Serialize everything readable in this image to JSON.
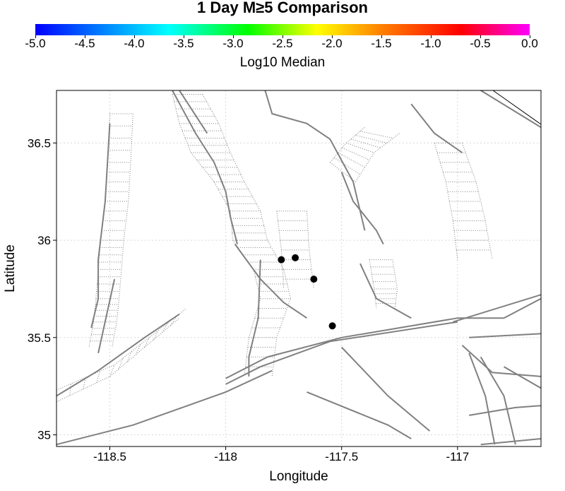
{
  "title": "1 Day M≥5 Comparison",
  "colorbar": {
    "label": "Log10 Median",
    "ticks": [
      "-5.0",
      "-4.5",
      "-4.0",
      "-3.5",
      "-3.0",
      "-2.5",
      "-2.0",
      "-1.5",
      "-1.0",
      "-0.5",
      "0.0"
    ],
    "range": [
      -5.0,
      0.0
    ],
    "colors": [
      "#0000ff",
      "#00ffff",
      "#00ff00",
      "#ffff00",
      "#ff8000",
      "#ff0000",
      "#ff00ff"
    ]
  },
  "map": {
    "xlabel": "Longitude",
    "ylabel": "Latitude",
    "xlim": [
      -118.73,
      -116.64
    ],
    "ylim": [
      34.94,
      36.77
    ],
    "xticks": [
      {
        "value": -118.5,
        "label": "-118.5"
      },
      {
        "value": -118.0,
        "label": "-118"
      },
      {
        "value": -117.5,
        "label": "-117.5"
      },
      {
        "value": -117.0,
        "label": "-117"
      }
    ],
    "yticks": [
      {
        "value": 35.0,
        "label": "35"
      },
      {
        "value": 35.5,
        "label": "35.5"
      },
      {
        "value": 36.0,
        "label": "36"
      },
      {
        "value": 36.5,
        "label": "36.5"
      }
    ],
    "grid": true,
    "colors": {
      "fault": "#808080",
      "rupture": "#808080",
      "event": "#000000",
      "grid": "#d8d8d8"
    }
  },
  "chart_data": {
    "type": "scatter",
    "title": "1 Day M≥5 Comparison",
    "xlabel": "Longitude",
    "ylabel": "Latitude",
    "xlim": [
      -118.73,
      -116.64
    ],
    "ylim": [
      34.94,
      36.77
    ],
    "series": [
      {
        "values": [
          {
            "x": -117.76,
            "y": 35.9
          },
          {
            "x": -117.7,
            "y": 35.91
          },
          {
            "x": -117.62,
            "y": 35.8
          },
          {
            "x": -117.54,
            "y": 35.56
          }
        ]
      }
    ],
    "faults": [
      [
        [
          -118.73,
          35.2
        ],
        [
          -118.55,
          35.33
        ],
        [
          -118.35,
          35.5
        ],
        [
          -118.2,
          35.62
        ]
      ],
      [
        [
          -118.48,
          35.8
        ],
        [
          -118.55,
          35.42
        ]
      ],
      [
        [
          -118.0,
          35.29
        ],
        [
          -117.82,
          35.4
        ],
        [
          -117.5,
          35.5
        ],
        [
          -117.0,
          35.6
        ],
        [
          -116.8,
          35.6
        ]
      ],
      [
        [
          -116.8,
          35.6
        ],
        [
          -116.64,
          35.7
        ]
      ],
      [
        [
          -118.73,
          34.95
        ],
        [
          -118.4,
          35.05
        ],
        [
          -118.0,
          35.22
        ],
        [
          -117.8,
          35.33
        ]
      ],
      [
        [
          -118.0,
          35.26
        ],
        [
          -117.85,
          35.35
        ],
        [
          -117.55,
          35.48
        ],
        [
          -117.0,
          35.58
        ]
      ],
      [
        [
          -117.02,
          35.58
        ],
        [
          -116.64,
          35.72
        ]
      ],
      [
        [
          -118.23,
          36.77
        ],
        [
          -118.13,
          36.55
        ],
        [
          -118.05,
          36.4
        ],
        [
          -118.0,
          36.25
        ],
        [
          -117.98,
          36.12
        ],
        [
          -117.95,
          35.98
        ]
      ],
      [
        [
          -118.2,
          36.77
        ],
        [
          -118.08,
          36.55
        ]
      ],
      [
        [
          -117.96,
          35.98
        ],
        [
          -117.85,
          35.8
        ],
        [
          -117.75,
          35.68
        ],
        [
          -117.65,
          35.6
        ]
      ],
      [
        [
          -117.83,
          36.77
        ],
        [
          -117.8,
          36.65
        ],
        [
          -117.65,
          36.6
        ],
        [
          -117.55,
          36.52
        ],
        [
          -117.45,
          36.3
        ],
        [
          -117.4,
          36.05
        ]
      ],
      [
        [
          -117.5,
          36.35
        ],
        [
          -117.45,
          36.2
        ],
        [
          -117.35,
          36.05
        ],
        [
          -117.32,
          35.98
        ]
      ],
      [
        [
          -117.42,
          35.88
        ],
        [
          -117.35,
          35.7
        ],
        [
          -117.2,
          35.6
        ]
      ],
      [
        [
          -117.2,
          36.7
        ],
        [
          -117.1,
          36.55
        ],
        [
          -116.98,
          36.45
        ]
      ],
      [
        [
          -116.9,
          36.77
        ],
        [
          -116.64,
          36.58
        ]
      ],
      [
        [
          -117.5,
          35.45
        ],
        [
          -117.3,
          35.2
        ],
        [
          -117.12,
          35.02
        ]
      ],
      [
        [
          -117.65,
          35.22
        ],
        [
          -117.3,
          35.05
        ],
        [
          -117.2,
          34.98
        ]
      ],
      [
        [
          -116.95,
          35.42
        ],
        [
          -116.88,
          35.2
        ],
        [
          -116.84,
          34.95
        ]
      ],
      [
        [
          -116.98,
          35.46
        ],
        [
          -116.85,
          35.32
        ],
        [
          -116.64,
          35.3
        ]
      ],
      [
        [
          -116.9,
          35.4
        ],
        [
          -116.8,
          35.2
        ],
        [
          -116.75,
          34.95
        ]
      ],
      [
        [
          -116.95,
          35.1
        ],
        [
          -116.75,
          35.14
        ],
        [
          -116.64,
          35.15
        ]
      ],
      [
        [
          -116.95,
          35.5
        ],
        [
          -116.64,
          35.52
        ]
      ],
      [
        [
          -116.8,
          35.35
        ],
        [
          -116.64,
          35.24
        ]
      ],
      [
        [
          -116.9,
          34.95
        ],
        [
          -116.64,
          34.98
        ]
      ],
      [
        [
          -118.5,
          36.6
        ],
        [
          -118.52,
          36.2
        ],
        [
          -118.55,
          35.9
        ],
        [
          -118.55,
          35.7
        ],
        [
          -118.58,
          35.55
        ]
      ],
      [
        [
          -117.85,
          35.9
        ],
        [
          -117.86,
          35.6
        ],
        [
          -117.9,
          35.4
        ],
        [
          -117.9,
          35.3
        ]
      ]
    ],
    "ruptures": [
      {
        "left": [
          [
            -118.5,
            36.65
          ],
          [
            -118.51,
            36.4
          ],
          [
            -118.52,
            36.2
          ],
          [
            -118.54,
            36.0
          ],
          [
            -118.55,
            35.85
          ],
          [
            -118.56,
            35.7
          ],
          [
            -118.57,
            35.58
          ],
          [
            -118.59,
            35.45
          ]
        ],
        "right": [
          [
            -118.4,
            36.65
          ],
          [
            -118.41,
            36.4
          ],
          [
            -118.42,
            36.2
          ],
          [
            -118.44,
            36.0
          ],
          [
            -118.45,
            35.85
          ],
          [
            -118.46,
            35.7
          ],
          [
            -118.47,
            35.58
          ],
          [
            -118.49,
            35.45
          ]
        ]
      },
      {
        "left": [
          [
            -118.23,
            36.75
          ],
          [
            -118.2,
            36.6
          ],
          [
            -118.15,
            36.45
          ],
          [
            -118.05,
            36.3
          ],
          [
            -117.98,
            36.15
          ],
          [
            -117.97,
            36.0
          ],
          [
            -117.88,
            35.85
          ],
          [
            -117.85,
            35.7
          ],
          [
            -117.9,
            35.5
          ],
          [
            -117.92,
            35.3
          ]
        ],
        "right": [
          [
            -118.1,
            36.75
          ],
          [
            -118.03,
            36.6
          ],
          [
            -117.98,
            36.45
          ],
          [
            -117.92,
            36.3
          ],
          [
            -117.85,
            36.15
          ],
          [
            -117.82,
            36.0
          ],
          [
            -117.75,
            35.85
          ],
          [
            -117.72,
            35.7
          ],
          [
            -117.78,
            35.5
          ],
          [
            -117.8,
            35.3
          ]
        ]
      },
      {
        "left": [
          [
            -117.78,
            36.15
          ],
          [
            -117.76,
            35.95
          ],
          [
            -117.75,
            35.75
          ]
        ],
        "right": [
          [
            -117.65,
            36.15
          ],
          [
            -117.64,
            35.95
          ],
          [
            -117.62,
            35.75
          ]
        ]
      },
      {
        "left": [
          [
            -117.55,
            36.4
          ],
          [
            -117.48,
            36.5
          ],
          [
            -117.4,
            36.58
          ]
        ],
        "right": [
          [
            -117.44,
            36.3
          ],
          [
            -117.36,
            36.45
          ],
          [
            -117.25,
            36.55
          ]
        ]
      },
      {
        "left": [
          [
            -117.38,
            35.9
          ],
          [
            -117.36,
            35.75
          ],
          [
            -117.35,
            35.65
          ]
        ],
        "right": [
          [
            -117.28,
            35.9
          ],
          [
            -117.26,
            35.75
          ],
          [
            -117.27,
            35.65
          ]
        ]
      },
      {
        "left": [
          [
            -117.1,
            36.5
          ],
          [
            -117.05,
            36.3
          ],
          [
            -117.02,
            36.1
          ],
          [
            -117.0,
            35.9
          ]
        ],
        "right": [
          [
            -116.98,
            36.5
          ],
          [
            -116.92,
            36.3
          ],
          [
            -116.88,
            36.1
          ],
          [
            -116.85,
            35.9
          ]
        ]
      },
      {
        "left": [
          [
            -118.73,
            35.17
          ],
          [
            -118.5,
            35.3
          ],
          [
            -118.35,
            35.45
          ],
          [
            -118.2,
            35.6
          ]
        ],
        "right": [
          [
            -118.73,
            35.23
          ],
          [
            -118.48,
            35.36
          ],
          [
            -118.33,
            35.5
          ],
          [
            -118.17,
            35.65
          ]
        ]
      }
    ]
  }
}
